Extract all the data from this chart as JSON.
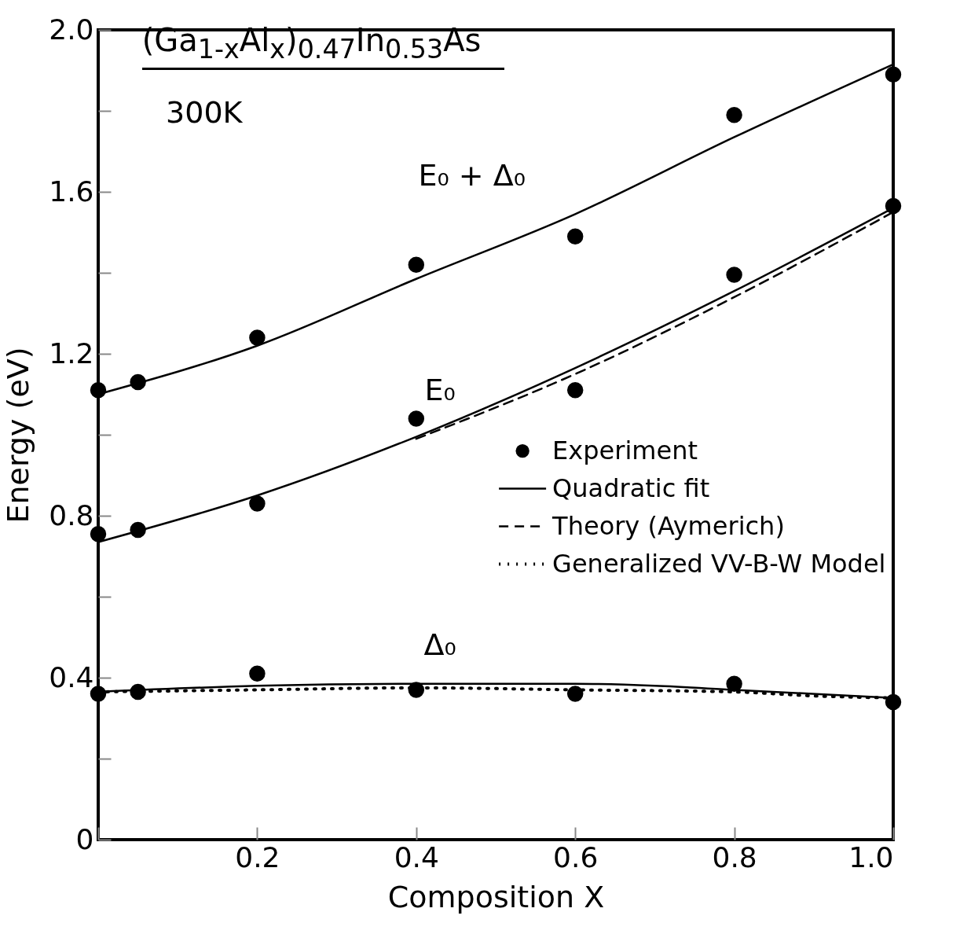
{
  "chart_data": {
    "type": "line",
    "title": "(Ga$_{1-x}$Al$_{x}$)$_{0.47}$In$_{0.53}$As",
    "subtitle": "300K",
    "xlabel": "Composition X",
    "ylabel": "Energy (eV)",
    "xlim": [
      0,
      1.0
    ],
    "ylim": [
      0,
      2.0
    ],
    "xticks": [
      {
        "value": 0,
        "label": null
      },
      0.2,
      0.4,
      0.6,
      0.8,
      {
        "value": 1.0,
        "label": "1.0"
      }
    ],
    "yticks": [
      0,
      {
        "value": 0.2,
        "label": null
      },
      0.4,
      {
        "value": 0.6,
        "label": null
      },
      0.8,
      {
        "value": 1.0,
        "label": null
      },
      1.2,
      {
        "value": 1.4,
        "label": null
      },
      1.6,
      {
        "value": 1.8,
        "label": null
      },
      {
        "value": 2.0,
        "label": "2.0"
      }
    ],
    "grid": false,
    "legend": "right",
    "annotations": [
      "E₀ + Δ₀",
      "E₀",
      "Δ₀"
    ],
    "series": [
      {
        "name": "Experiment",
        "type": "scatter",
        "marker": "circle",
        "color": "#000000",
        "x": [
          0,
          0.05,
          0.2,
          0.4,
          0.6,
          0.8,
          1.0,
          0,
          0.05,
          0.2,
          0.4,
          0.6,
          0.8,
          1.0,
          0,
          0.05,
          0.2,
          0.4,
          0.6,
          0.8,
          1.0
        ],
        "values": [
          1.11,
          1.13,
          1.24,
          1.42,
          1.49,
          1.79,
          1.89,
          0.755,
          0.765,
          0.83,
          1.04,
          1.11,
          1.395,
          1.565,
          0.36,
          0.365,
          0.41,
          0.37,
          0.36,
          0.385,
          0.34
        ]
      },
      {
        "name": "Quadratic fit",
        "type": "line",
        "line_style": "solid",
        "color": "#000000",
        "x": [
          0,
          0.2,
          0.4,
          0.6,
          0.8,
          1.0
        ],
        "values": [
          1.1,
          1.22,
          1.385,
          1.545,
          1.735,
          1.915
        ]
      },
      {
        "type": "line",
        "line_style": "solid",
        "color": "#000000",
        "x": [
          0,
          0.2,
          0.4,
          0.6,
          0.8,
          1.0
        ],
        "values": [
          0.735,
          0.85,
          0.995,
          1.165,
          1.355,
          1.56
        ]
      },
      {
        "type": "line",
        "line_style": "solid",
        "color": "#000000",
        "x": [
          0,
          0.2,
          0.4,
          0.6,
          0.7,
          0.8,
          1.0
        ],
        "values": [
          0.365,
          0.38,
          0.385,
          0.385,
          0.38,
          0.37,
          0.35
        ]
      },
      {
        "name": "Theory (Aymerich)",
        "type": "line",
        "line_style": "dashed",
        "color": "#000000",
        "x": [
          0.4,
          0.6,
          0.8,
          1.0
        ],
        "values": [
          0.99,
          1.15,
          1.34,
          1.55
        ]
      },
      {
        "name": "Generalized VV-B-W Model",
        "type": "line",
        "line_style": "dotted",
        "color": "#000000",
        "x": [
          0,
          0.2,
          0.4,
          0.6,
          0.8,
          0.9,
          1.0
        ],
        "values": [
          0.365,
          0.37,
          0.375,
          0.37,
          0.365,
          0.355,
          0.35
        ]
      }
    ]
  }
}
